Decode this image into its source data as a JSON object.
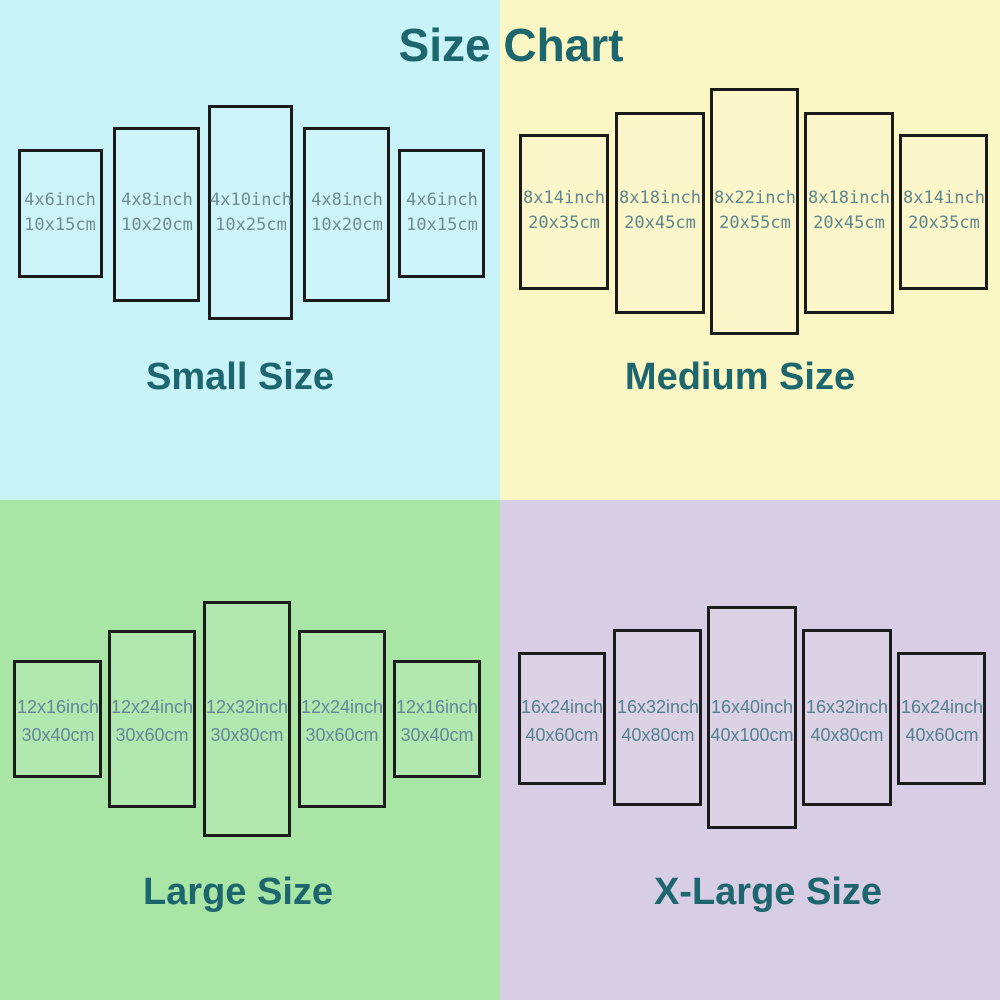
{
  "title": "Size Chart",
  "title_color": "#1d666e",
  "quadrants": [
    {
      "id": "small",
      "label": "Small Size",
      "background": "#c8f4f9",
      "label_color": "#1d666e",
      "panel_text_color": "#6d8d93",
      "panels": [
        {
          "inch": "4x6inch",
          "cm": "10x15cm"
        },
        {
          "inch": "4x8inch",
          "cm": "10x20cm"
        },
        {
          "inch": "4x10inch",
          "cm": "10x25cm"
        },
        {
          "inch": "4x8inch",
          "cm": "10x20cm"
        },
        {
          "inch": "4x6inch",
          "cm": "10x15cm"
        }
      ]
    },
    {
      "id": "medium",
      "label": "Medium Size",
      "background": "#fbf7c5",
      "label_color": "#1d666e",
      "panel_text_color": "#5e868e",
      "panels": [
        {
          "inch": "8x14inch",
          "cm": "20x35cm"
        },
        {
          "inch": "8x18inch",
          "cm": "20x45cm"
        },
        {
          "inch": "8x22inch",
          "cm": "20x55cm"
        },
        {
          "inch": "8x18inch",
          "cm": "20x45cm"
        },
        {
          "inch": "8x14inch",
          "cm": "20x35cm"
        }
      ]
    },
    {
      "id": "large",
      "label": "Large Size",
      "background": "#a9e6a6",
      "label_color": "#1d666e",
      "panel_text_color": "#64879a",
      "panels": [
        {
          "inch": "12x16inch",
          "cm": "30x40cm"
        },
        {
          "inch": "12x24inch",
          "cm": "30x60cm"
        },
        {
          "inch": "12x32inch",
          "cm": "30x80cm"
        },
        {
          "inch": "12x24inch",
          "cm": "30x60cm"
        },
        {
          "inch": "12x16inch",
          "cm": "30x40cm"
        }
      ]
    },
    {
      "id": "xlarge",
      "label": "X-Large Size",
      "background": "#d7cde4",
      "label_color": "#1d666e",
      "panel_text_color": "#55808d",
      "panels": [
        {
          "inch": "16x24inch",
          "cm": "40x60cm"
        },
        {
          "inch": "16x32inch",
          "cm": "40x80cm"
        },
        {
          "inch": "16x40inch",
          "cm": "40x100cm"
        },
        {
          "inch": "16x32inch",
          "cm": "40x80cm"
        },
        {
          "inch": "16x24inch",
          "cm": "40x60cm"
        }
      ]
    }
  ]
}
